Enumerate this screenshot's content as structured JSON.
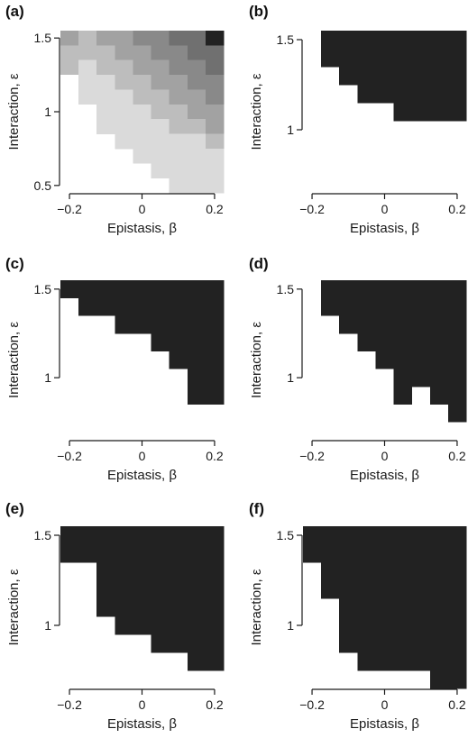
{
  "chart_data": [
    {
      "panel_label": "(a)",
      "type": "heatmap",
      "xlabel": "Epistasis, β",
      "ylabel": "Interaction, ε",
      "xlim": [
        -0.225,
        0.225
      ],
      "ylim": [
        0.45,
        1.55
      ],
      "x_ticks": [
        {
          "v": -0.2,
          "t": "−0.2"
        },
        {
          "v": 0,
          "t": "0"
        },
        {
          "v": 0.2,
          "t": "0.2"
        }
      ],
      "y_ticks": [
        {
          "v": 0.5,
          "t": "0.5"
        },
        {
          "v": 1,
          "t": "1"
        },
        {
          "v": 1.5,
          "t": "1.5"
        }
      ],
      "cells": [
        {
          "x": [
            -0.225,
            -0.175
          ],
          "y": [
            1.45,
            1.55
          ],
          "level": 3
        },
        {
          "x": [
            -0.175,
            -0.125
          ],
          "y": [
            1.45,
            1.55
          ],
          "level": 2
        },
        {
          "x": [
            -0.125,
            -0.025
          ],
          "y": [
            1.45,
            1.55
          ],
          "level": 3
        },
        {
          "x": [
            -0.025,
            0.075
          ],
          "y": [
            1.45,
            1.55
          ],
          "level": 4
        },
        {
          "x": [
            0.075,
            0.175
          ],
          "y": [
            1.45,
            1.55
          ],
          "level": 5
        },
        {
          "x": [
            0.175,
            0.225
          ],
          "y": [
            1.45,
            1.55
          ],
          "level": 6
        },
        {
          "x": [
            -0.225,
            -0.175
          ],
          "y": [
            1.25,
            1.45
          ],
          "level": 2
        },
        {
          "x": [
            -0.175,
            -0.075
          ],
          "y": [
            1.35,
            1.45
          ],
          "level": 2
        },
        {
          "x": [
            -0.075,
            0.025
          ],
          "y": [
            1.35,
            1.45
          ],
          "level": 3
        },
        {
          "x": [
            0.025,
            0.125
          ],
          "y": [
            1.35,
            1.45
          ],
          "level": 4
        },
        {
          "x": [
            0.125,
            0.225
          ],
          "y": [
            1.35,
            1.45
          ],
          "level": 5
        },
        {
          "x": [
            -0.175,
            -0.125
          ],
          "y": [
            1.25,
            1.35
          ],
          "level": 1
        },
        {
          "x": [
            -0.125,
            -0.025
          ],
          "y": [
            1.25,
            1.35
          ],
          "level": 2
        },
        {
          "x": [
            -0.025,
            0.075
          ],
          "y": [
            1.25,
            1.35
          ],
          "level": 3
        },
        {
          "x": [
            0.075,
            0.175
          ],
          "y": [
            1.25,
            1.35
          ],
          "level": 4
        },
        {
          "x": [
            0.175,
            0.225
          ],
          "y": [
            1.25,
            1.35
          ],
          "level": 5
        },
        {
          "x": [
            -0.225,
            -0.175
          ],
          "y": [
            1.15,
            1.25
          ],
          "level": 0
        },
        {
          "x": [
            -0.175,
            -0.075
          ],
          "y": [
            1.15,
            1.25
          ],
          "level": 1
        },
        {
          "x": [
            -0.075,
            0.025
          ],
          "y": [
            1.15,
            1.25
          ],
          "level": 2
        },
        {
          "x": [
            0.025,
            0.125
          ],
          "y": [
            1.15,
            1.25
          ],
          "level": 3
        },
        {
          "x": [
            0.125,
            0.225
          ],
          "y": [
            1.15,
            1.25
          ],
          "level": 4
        },
        {
          "x": [
            -0.175,
            -0.125
          ],
          "y": [
            1.05,
            1.15
          ],
          "level": 1
        },
        {
          "x": [
            -0.125,
            -0.025
          ],
          "y": [
            1.05,
            1.15
          ],
          "level": 1
        },
        {
          "x": [
            -0.025,
            0.075
          ],
          "y": [
            1.05,
            1.15
          ],
          "level": 2
        },
        {
          "x": [
            0.075,
            0.175
          ],
          "y": [
            1.05,
            1.15
          ],
          "level": 3
        },
        {
          "x": [
            0.175,
            0.225
          ],
          "y": [
            1.05,
            1.15
          ],
          "level": 4
        },
        {
          "x": [
            -0.125,
            -0.075
          ],
          "y": [
            0.95,
            1.05
          ],
          "level": 1
        },
        {
          "x": [
            -0.075,
            0.025
          ],
          "y": [
            0.95,
            1.05
          ],
          "level": 1
        },
        {
          "x": [
            0.025,
            0.125
          ],
          "y": [
            0.95,
            1.05
          ],
          "level": 2
        },
        {
          "x": [
            0.125,
            0.225
          ],
          "y": [
            0.95,
            1.05
          ],
          "level": 3
        },
        {
          "x": [
            -0.125,
            -0.075
          ],
          "y": [
            0.85,
            0.95
          ],
          "level": 1
        },
        {
          "x": [
            -0.075,
            0.025
          ],
          "y": [
            0.85,
            0.95
          ],
          "level": 1
        },
        {
          "x": [
            0.025,
            0.075
          ],
          "y": [
            0.85,
            0.95
          ],
          "level": 1
        },
        {
          "x": [
            0.075,
            0.175
          ],
          "y": [
            0.85,
            0.95
          ],
          "level": 2
        },
        {
          "x": [
            0.175,
            0.225
          ],
          "y": [
            0.85,
            0.95
          ],
          "level": 3
        },
        {
          "x": [
            -0.075,
            -0.025
          ],
          "y": [
            0.75,
            0.85
          ],
          "level": 1
        },
        {
          "x": [
            -0.025,
            0.075
          ],
          "y": [
            0.75,
            0.85
          ],
          "level": 1
        },
        {
          "x": [
            0.075,
            0.175
          ],
          "y": [
            0.75,
            0.85
          ],
          "level": 1
        },
        {
          "x": [
            0.175,
            0.225
          ],
          "y": [
            0.75,
            0.85
          ],
          "level": 2
        },
        {
          "x": [
            -0.025,
            0.225
          ],
          "y": [
            0.65,
            0.75
          ],
          "level": 1
        },
        {
          "x": [
            0.025,
            0.225
          ],
          "y": [
            0.55,
            0.65
          ],
          "level": 1
        },
        {
          "x": [
            0.075,
            0.225
          ],
          "y": [
            0.45,
            0.55
          ],
          "level": 1
        }
      ]
    },
    {
      "panel_label": "(b)",
      "type": "heatmap",
      "xlabel": "Epistasis, β",
      "ylabel": "Interaction, ε",
      "xlim": [
        -0.225,
        0.225
      ],
      "ylim": [
        0.65,
        1.55
      ],
      "x_ticks": [
        {
          "v": -0.2,
          "t": "−0.2"
        },
        {
          "v": 0,
          "t": "0"
        },
        {
          "v": 0.2,
          "t": "0.2"
        }
      ],
      "y_ticks": [
        {
          "v": 1,
          "t": "1"
        },
        {
          "v": 1.5,
          "t": "1.5"
        }
      ],
      "cells": [
        {
          "x": [
            -0.175,
            0.225
          ],
          "y": [
            1.45,
            1.55
          ],
          "level": 6
        },
        {
          "x": [
            -0.175,
            0.225
          ],
          "y": [
            1.35,
            1.45
          ],
          "level": 6
        },
        {
          "x": [
            -0.125,
            0.225
          ],
          "y": [
            1.25,
            1.35
          ],
          "level": 6
        },
        {
          "x": [
            -0.075,
            0.225
          ],
          "y": [
            1.15,
            1.25
          ],
          "level": 6
        },
        {
          "x": [
            0.025,
            0.225
          ],
          "y": [
            1.05,
            1.15
          ],
          "level": 6
        }
      ]
    },
    {
      "panel_label": "(c)",
      "type": "heatmap",
      "xlabel": "Epistasis, β",
      "ylabel": "Interaction, ε",
      "xlim": [
        -0.225,
        0.225
      ],
      "ylim": [
        0.65,
        1.55
      ],
      "x_ticks": [
        {
          "v": -0.2,
          "t": "−0.2"
        },
        {
          "v": 0,
          "t": "0"
        },
        {
          "v": 0.2,
          "t": "0.2"
        }
      ],
      "y_ticks": [
        {
          "v": 1,
          "t": "1"
        },
        {
          "v": 1.5,
          "t": "1.5"
        }
      ],
      "cells": [
        {
          "x": [
            -0.225,
            0.225
          ],
          "y": [
            1.45,
            1.55
          ],
          "level": 6
        },
        {
          "x": [
            -0.175,
            0.225
          ],
          "y": [
            1.35,
            1.45
          ],
          "level": 6
        },
        {
          "x": [
            -0.075,
            0.225
          ],
          "y": [
            1.25,
            1.35
          ],
          "level": 6
        },
        {
          "x": [
            0.025,
            0.225
          ],
          "y": [
            1.15,
            1.25
          ],
          "level": 6
        },
        {
          "x": [
            0.075,
            0.225
          ],
          "y": [
            1.05,
            1.15
          ],
          "level": 6
        },
        {
          "x": [
            0.125,
            0.225
          ],
          "y": [
            0.95,
            1.05
          ],
          "level": 6
        },
        {
          "x": [
            0.125,
            0.225
          ],
          "y": [
            0.85,
            0.95
          ],
          "level": 6
        }
      ]
    },
    {
      "panel_label": "(d)",
      "type": "heatmap",
      "xlabel": "Epistasis, β",
      "ylabel": "Interaction, ε",
      "xlim": [
        -0.225,
        0.225
      ],
      "ylim": [
        0.65,
        1.55
      ],
      "x_ticks": [
        {
          "v": -0.2,
          "t": "−0.2"
        },
        {
          "v": 0,
          "t": "0"
        },
        {
          "v": 0.2,
          "t": "0.2"
        }
      ],
      "y_ticks": [
        {
          "v": 1,
          "t": "1"
        },
        {
          "v": 1.5,
          "t": "1.5"
        }
      ],
      "cells": [
        {
          "x": [
            -0.175,
            0.225
          ],
          "y": [
            1.45,
            1.55
          ],
          "level": 6
        },
        {
          "x": [
            -0.175,
            0.225
          ],
          "y": [
            1.35,
            1.45
          ],
          "level": 6
        },
        {
          "x": [
            -0.125,
            0.225
          ],
          "y": [
            1.25,
            1.35
          ],
          "level": 6
        },
        {
          "x": [
            -0.075,
            0.225
          ],
          "y": [
            1.15,
            1.25
          ],
          "level": 6
        },
        {
          "x": [
            -0.025,
            0.225
          ],
          "y": [
            1.05,
            1.15
          ],
          "level": 6
        },
        {
          "x": [
            0.025,
            0.225
          ],
          "y": [
            0.95,
            1.05
          ],
          "level": 6
        },
        {
          "x": [
            0.025,
            0.075
          ],
          "y": [
            0.85,
            0.95
          ],
          "level": 6
        },
        {
          "x": [
            0.125,
            0.225
          ],
          "y": [
            0.85,
            0.95
          ],
          "level": 6
        },
        {
          "x": [
            0.175,
            0.225
          ],
          "y": [
            0.75,
            0.85
          ],
          "level": 6
        }
      ]
    },
    {
      "panel_label": "(e)",
      "type": "heatmap",
      "xlabel": "Epistasis, β",
      "ylabel": "Interaction, ε",
      "xlim": [
        -0.225,
        0.225
      ],
      "ylim": [
        0.65,
        1.55
      ],
      "x_ticks": [
        {
          "v": -0.2,
          "t": "−0.2"
        },
        {
          "v": 0,
          "t": "0"
        },
        {
          "v": 0.2,
          "t": "0.2"
        }
      ],
      "y_ticks": [
        {
          "v": 1,
          "t": "1"
        },
        {
          "v": 1.5,
          "t": "1.5"
        }
      ],
      "cells": [
        {
          "x": [
            -0.225,
            0.225
          ],
          "y": [
            1.45,
            1.55
          ],
          "level": 6
        },
        {
          "x": [
            -0.225,
            0.225
          ],
          "y": [
            1.35,
            1.45
          ],
          "level": 6
        },
        {
          "x": [
            -0.125,
            0.225
          ],
          "y": [
            1.25,
            1.35
          ],
          "level": 6
        },
        {
          "x": [
            -0.125,
            0.225
          ],
          "y": [
            1.15,
            1.25
          ],
          "level": 6
        },
        {
          "x": [
            -0.125,
            0.225
          ],
          "y": [
            1.05,
            1.15
          ],
          "level": 6
        },
        {
          "x": [
            -0.075,
            0.225
          ],
          "y": [
            0.95,
            1.05
          ],
          "level": 6
        },
        {
          "x": [
            0.025,
            0.225
          ],
          "y": [
            0.85,
            0.95
          ],
          "level": 6
        },
        {
          "x": [
            0.125,
            0.225
          ],
          "y": [
            0.75,
            0.85
          ],
          "level": 6
        }
      ]
    },
    {
      "panel_label": "(f)",
      "type": "heatmap",
      "xlabel": "Epistasis, β",
      "ylabel": "Interaction, ε",
      "xlim": [
        -0.225,
        0.225
      ],
      "ylim": [
        0.65,
        1.55
      ],
      "x_ticks": [
        {
          "v": -0.2,
          "t": "−0.2"
        },
        {
          "v": 0,
          "t": "0"
        },
        {
          "v": 0.2,
          "t": "0.2"
        }
      ],
      "y_ticks": [
        {
          "v": 1,
          "t": "1"
        },
        {
          "v": 1.5,
          "t": "1.5"
        }
      ],
      "cells": [
        {
          "x": [
            -0.225,
            0.225
          ],
          "y": [
            1.45,
            1.55
          ],
          "level": 6
        },
        {
          "x": [
            -0.225,
            0.225
          ],
          "y": [
            1.35,
            1.45
          ],
          "level": 6
        },
        {
          "x": [
            -0.175,
            0.225
          ],
          "y": [
            1.25,
            1.35
          ],
          "level": 6
        },
        {
          "x": [
            -0.175,
            0.225
          ],
          "y": [
            1.15,
            1.25
          ],
          "level": 6
        },
        {
          "x": [
            -0.125,
            0.225
          ],
          "y": [
            1.05,
            1.15
          ],
          "level": 6
        },
        {
          "x": [
            -0.125,
            0.225
          ],
          "y": [
            0.95,
            1.05
          ],
          "level": 6
        },
        {
          "x": [
            -0.125,
            0.225
          ],
          "y": [
            0.85,
            0.95
          ],
          "level": 6
        },
        {
          "x": [
            -0.075,
            0.225
          ],
          "y": [
            0.75,
            0.85
          ],
          "level": 6
        },
        {
          "x": [
            0.125,
            0.225
          ],
          "y": [
            0.65,
            0.75
          ],
          "level": 6
        }
      ]
    }
  ],
  "colors": {
    "level_0": "#ffffff",
    "level_1": "#dadada",
    "level_2": "#bdbdbd",
    "level_3": "#a2a2a2",
    "level_4": "#898989",
    "level_5": "#707070",
    "level_6": "#222222",
    "axis": "#1a1a1a"
  }
}
